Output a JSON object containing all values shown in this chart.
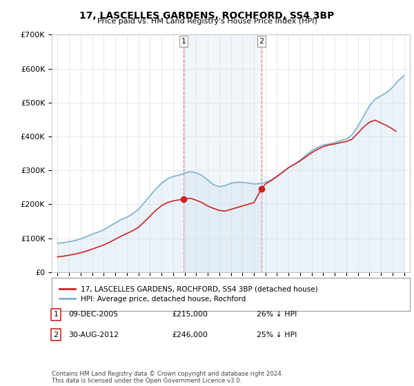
{
  "title": "17, LASCELLES GARDENS, ROCHFORD, SS4 3BP",
  "subtitle": "Price paid vs. HM Land Registry's House Price Index (HPI)",
  "ylabel_ticks": [
    "£0",
    "£100K",
    "£200K",
    "£300K",
    "£400K",
    "£500K",
    "£600K",
    "£700K"
  ],
  "ylim": [
    0,
    700000
  ],
  "xlim_start": 1994.5,
  "xlim_end": 2025.5,
  "hpi_color": "#7ab3d4",
  "hpi_fill_color": "#c8ddef",
  "price_color": "#cc2222",
  "marker_color": "#cc2222",
  "sale1_year": 2005.92,
  "sale1_price": 215000,
  "sale2_year": 2012.66,
  "sale2_price": 246000,
  "legend_entry1": "17, LASCELLES GARDENS, ROCHFORD, SS4 3BP (detached house)",
  "legend_entry2": "HPI: Average price, detached house, Rochford",
  "table_row1": [
    "1",
    "09-DEC-2005",
    "£215,000",
    "26% ↓ HPI"
  ],
  "table_row2": [
    "2",
    "30-AUG-2012",
    "£246,000",
    "25% ↓ HPI"
  ],
  "footer": "Contains HM Land Registry data © Crown copyright and database right 2024.\nThis data is licensed under the Open Government Licence v3.0.",
  "background_color": "#ffffff",
  "grid_color": "#dddddd",
  "shade_start": 2005.92,
  "shade_end": 2012.66
}
